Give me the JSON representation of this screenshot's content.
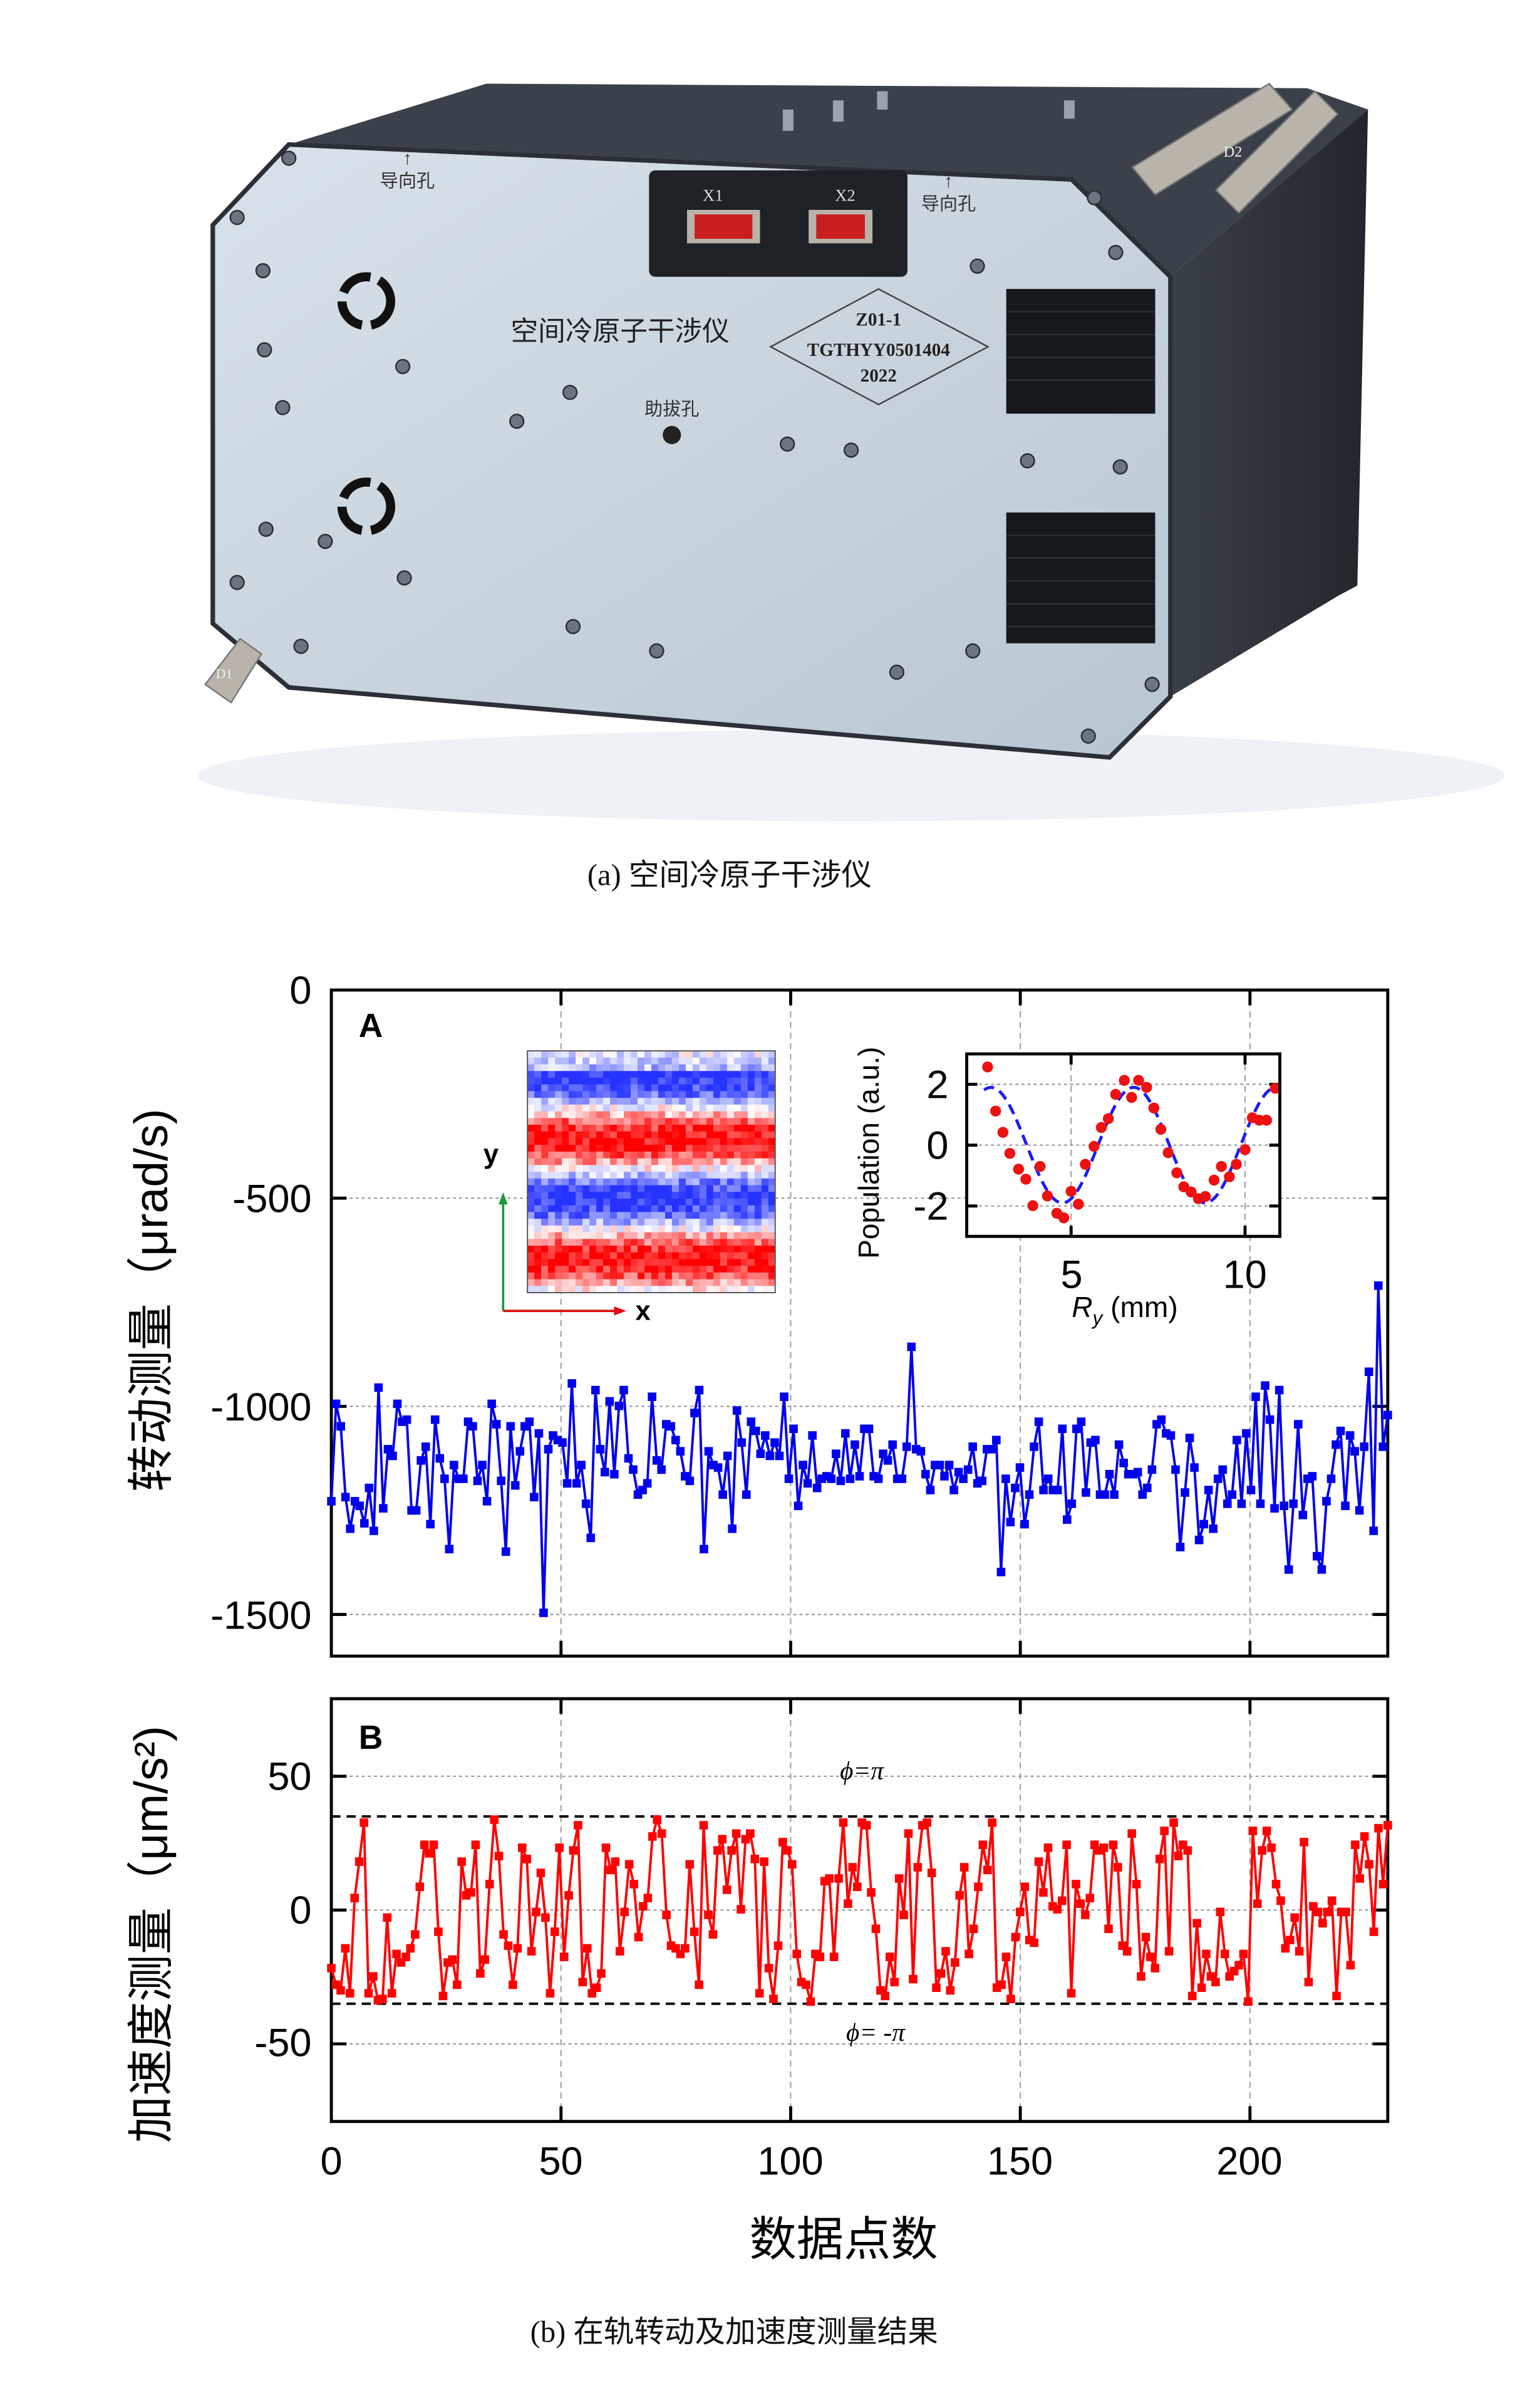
{
  "photo": {
    "guide_hole_left": "导向孔",
    "guide_hole_right": "导向孔",
    "connector_x1": "X1",
    "connector_x2": "X2",
    "device_name": "空间冷原子干涉仪",
    "label_line1": "Z01-1",
    "label_line2": "TGTHYY0501404",
    "label_line3": "2022",
    "pull_hole": "助拔孔",
    "handle_d1": "D1",
    "handle_d2": "D2",
    "caption": "(a) 空间冷原子干涉仪"
  },
  "figure_caption": "(b) 在轨转动及加速度测量结果",
  "colors": {
    "rotation": "#0000ee",
    "acceleration": "#ff0000",
    "fit": "#1a1aff",
    "inset_points": "#ee1111"
  },
  "chart_data": [
    {
      "type": "line",
      "panel_label": "A",
      "ylabel": "转动测量（μrad/s)",
      "ylim": [
        -1600,
        0
      ],
      "yticks": [
        "0",
        "-500",
        "-1000",
        "-1500"
      ],
      "xlim": [
        0,
        230
      ],
      "grid": true,
      "marker": "square",
      "values": [
        -1228,
        -994,
        -1048,
        -1218,
        -1294,
        -1228,
        -1239,
        -1281,
        -1196,
        -1299,
        -955,
        -1245,
        -1103,
        -1119,
        -994,
        -1037,
        -1032,
        -1250,
        -1250,
        -1130,
        -1097,
        -1283,
        -1032,
        -1125,
        -1174,
        -1343,
        -1141,
        -1174,
        -1174,
        -1037,
        -1048,
        -1179,
        -1141,
        -1228,
        -994,
        -1043,
        -1179,
        -1349,
        -1048,
        -1190,
        -1108,
        -1048,
        -1037,
        -1218,
        -1065,
        -1496,
        -1103,
        -1070,
        -1081,
        -1087,
        -1185,
        -945,
        -1185,
        -1141,
        -1234,
        -1316,
        -961,
        -1103,
        -1158,
        -988,
        -1163,
        -999,
        -961,
        -1125,
        -1152,
        -1212,
        -1201,
        -1185,
        -977,
        -1130,
        -1152,
        -1043,
        -1048,
        -1081,
        -1108,
        -1168,
        -1179,
        -1016,
        -961,
        -1343,
        -1108,
        -1141,
        -1147,
        -1212,
        -1119,
        -1294,
        -1010,
        -1087,
        -1212,
        -1037,
        -1059,
        -1114,
        -1070,
        -1119,
        -1087,
        -1119,
        -977,
        -1174,
        -1054,
        -1239,
        -1141,
        -1185,
        -1070,
        -1196,
        -1174,
        -1168,
        -1174,
        -1114,
        -1179,
        -1065,
        -1174,
        -1092,
        -1168,
        -1054,
        -1054,
        -1168,
        -1174,
        -1114,
        -1130,
        -1092,
        -1174,
        -1174,
        -1097,
        -857,
        -1103,
        -1108,
        -1163,
        -1201,
        -1141,
        -1141,
        -1168,
        -1141,
        -1201,
        -1158,
        -1174,
        -1152,
        -1097,
        -1185,
        -1179,
        -1103,
        -1103,
        -1081,
        -1398,
        -1174,
        -1278,
        -1196,
        -1147,
        -1283,
        -1212,
        -1097,
        -1037,
        -1201,
        -1174,
        -1201,
        -1201,
        -1054,
        -1272,
        -1234,
        -1054,
        -1037,
        -1207,
        -1087,
        -1081,
        -1212,
        -1212,
        -1163,
        -1212,
        -1092,
        -1136,
        -1163,
        -1163,
        -1158,
        -1212,
        -1196,
        -1152,
        -1043,
        -1032,
        -1065,
        -1070,
        -1152,
        -1338,
        -1207,
        -1076,
        -1147,
        -1321,
        -1283,
        -1201,
        -1294,
        -1174,
        -1152,
        -1234,
        -1212,
        -1081,
        -1234,
        -1065,
        -1201,
        -977,
        -1234,
        -950,
        -1032,
        -1245,
        -961,
        -1239,
        -1392,
        -1234,
        -1043,
        -1261,
        -1174,
        -1168,
        -1360,
        -1392,
        -1228,
        -1174,
        -1092,
        -1059,
        -1239,
        -1070,
        -1108,
        -1250,
        -1097,
        -917,
        -1299,
        -710,
        -1097,
        -1021
      ],
      "image_inset": {
        "type": "heatmap",
        "xlabel": "x",
        "ylabel": "y"
      },
      "scatter_inset": {
        "type": "scatter",
        "xlabel_main": "R",
        "xlabel_sub": "y",
        "xlabel_unit": " (mm)",
        "ylabel": "Population (a.u.)",
        "xlim": [
          2,
          11
        ],
        "ylim": [
          -3,
          3
        ],
        "xticks": [
          5,
          10
        ],
        "yticks": [
          2,
          0,
          -2
        ],
        "x": [
          2.6,
          2.83,
          3.04,
          3.24,
          3.49,
          3.7,
          3.9,
          4.11,
          4.32,
          4.59,
          4.79,
          5.0,
          5.21,
          5.41,
          5.66,
          5.87,
          6.07,
          6.28,
          6.53,
          6.74,
          6.94,
          7.17,
          7.38,
          7.58,
          7.79,
          8.04,
          8.24,
          8.45,
          8.66,
          8.86,
          9.11,
          9.32,
          9.55,
          9.75,
          10.0,
          10.21,
          10.41,
          10.62,
          10.87
        ],
        "y": [
          2.57,
          1.12,
          0.42,
          -0.27,
          -0.79,
          -1.12,
          -1.99,
          -0.7,
          -1.67,
          -2.24,
          -2.39,
          -1.52,
          -1.94,
          -0.63,
          -0.04,
          0.58,
          0.87,
          1.67,
          2.13,
          1.57,
          2.13,
          1.9,
          1.22,
          0.52,
          -0.25,
          -0.91,
          -1.37,
          -1.54,
          -1.76,
          -1.69,
          -1.15,
          -0.7,
          -1.04,
          -0.63,
          -0.15,
          0.9,
          0.82,
          0.82,
          1.87
        ],
        "fit": {
          "shape": "sine",
          "amplitude": 1.9,
          "period": 4.1,
          "peak_x": 6.8
        }
      }
    },
    {
      "type": "line",
      "panel_label": "B",
      "ylabel": "加速度测量（μm/s²)",
      "ylim": [
        -79,
        79
      ],
      "yticks": [
        "50",
        "0",
        "-50"
      ],
      "xlabel": "数据点数",
      "xticks": [
        "0",
        "50",
        "100",
        "150",
        "200"
      ],
      "xlim": [
        0,
        230
      ],
      "grid": true,
      "marker": "square",
      "reference_lines": [
        {
          "y": 35,
          "label": "ϕ=π"
        },
        {
          "y": -35,
          "label": "ϕ= -π"
        }
      ],
      "values": [
        -21.7,
        -27.9,
        -30.0,
        -14.3,
        -31.1,
        4.5,
        18.1,
        32.7,
        -31.1,
        -24.8,
        -33.7,
        -33.2,
        -2.8,
        -31.1,
        -16.4,
        -19.6,
        -17.5,
        -14.3,
        -9.1,
        8.7,
        24.4,
        21.2,
        24.4,
        -8.1,
        -32.1,
        -19.6,
        -18.5,
        -27.9,
        18.1,
        5.5,
        6.6,
        24.4,
        -23.7,
        -18.5,
        9.7,
        33.8,
        20.2,
        -9.1,
        -13.3,
        -27.9,
        -14.3,
        23.3,
        19.1,
        -15.4,
        -0.7,
        13.9,
        -2.8,
        -31.1,
        -8.1,
        23.3,
        -17.5,
        5.5,
        22.3,
        31.7,
        -26.9,
        -14.3,
        -31.1,
        -29.0,
        -23.7,
        23.3,
        15.0,
        18.1,
        -15.4,
        -0.7,
        17.1,
        9.7,
        -10.1,
        1.4,
        4.5,
        27.5,
        33.8,
        28.6,
        -1.8,
        -13.3,
        -14.3,
        -16.4,
        -14.3,
        17.1,
        -8.1,
        -27.9,
        31.7,
        -1.8,
        -9.1,
        22.3,
        26.5,
        7.6,
        22.3,
        28.6,
        0.3,
        26.5,
        28.6,
        19.1,
        -31.1,
        18.1,
        -21.7,
        -33.2,
        -13.3,
        25.4,
        22.3,
        17.1,
        -16.4,
        -26.9,
        -27.9,
        -34.2,
        -16.4,
        -17.5,
        10.8,
        11.8,
        -17.5,
        11.8,
        32.7,
        2.4,
        16.0,
        8.7,
        32.7,
        31.7,
        6.6,
        -7.0,
        -30.0,
        -32.1,
        -17.5,
        -26.9,
        11.8,
        -1.8,
        28.6,
        -25.8,
        16.0,
        31.7,
        32.7,
        13.9,
        -29.0,
        -23.7,
        -15.4,
        -30.0,
        -19.6,
        5.5,
        16.0,
        -16.4,
        -7.0,
        8.7,
        24.4,
        15.0,
        32.7,
        -29.0,
        -27.9,
        -17.5,
        -33.2,
        -10.1,
        -0.7,
        8.7,
        -11.2,
        -12.2,
        18.1,
        6.6,
        23.3,
        1.4,
        0.3,
        3.5,
        24.4,
        -31.1,
        9.7,
        2.4,
        -1.8,
        4.5,
        24.4,
        22.3,
        23.3,
        -7.0,
        24.4,
        16.0,
        -13.3,
        -15.4,
        28.6,
        9.7,
        -24.8,
        -10.1,
        -17.5,
        -21.7,
        19.1,
        29.6,
        -15.4,
        32.7,
        20.2,
        24.4,
        22.3,
        -32.1,
        -4.9,
        -29.0,
        -16.4,
        -24.8,
        -26.9,
        -0.7,
        -16.4,
        -24.8,
        -22.8,
        -20.6,
        -16.4,
        -34.2,
        29.6,
        2.4,
        22.3,
        29.6,
        23.3,
        9.7,
        3.5,
        -14.3,
        -11.2,
        -2.8,
        -15.4,
        25.4,
        -26.9,
        1.4,
        -0.7,
        -4.9,
        -0.7,
        3.5,
        -32.1,
        -0.7,
        -0.7,
        -20.6,
        24.4,
        11.8,
        27.5,
        17.1,
        -8.1,
        30.6,
        9.7,
        31.7
      ]
    }
  ]
}
